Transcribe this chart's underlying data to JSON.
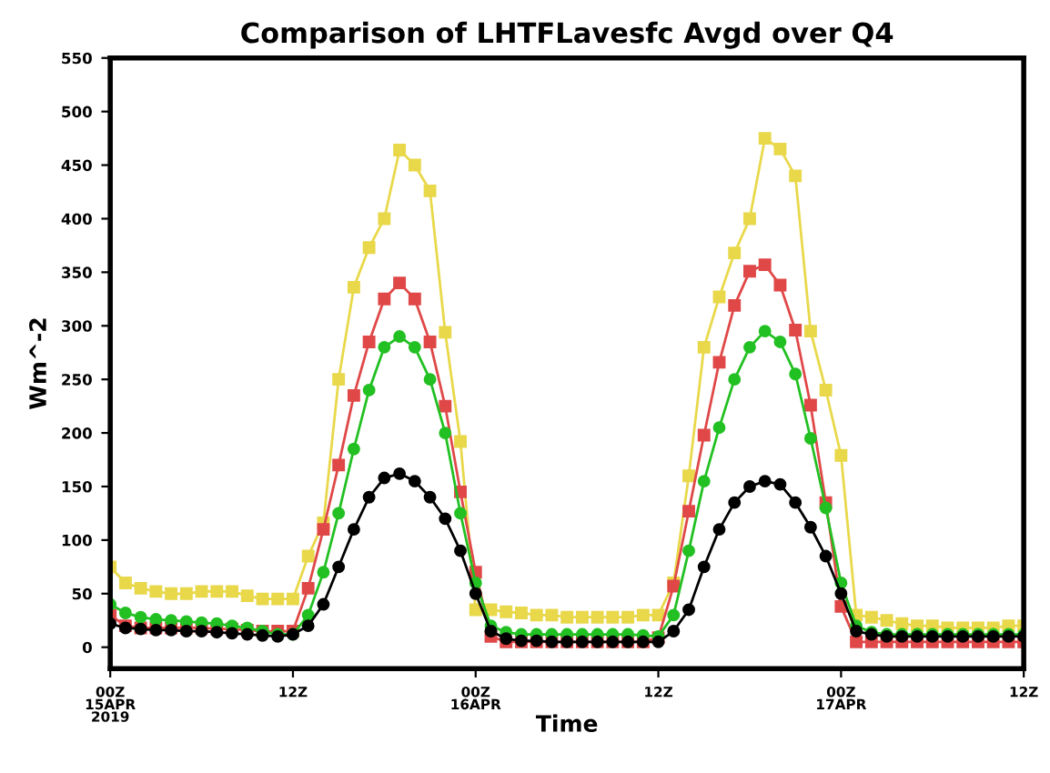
{
  "chart_data": {
    "type": "line",
    "title": "Comparison of LHTFLavesfc Avgd over Q4",
    "xlabel": "Time",
    "ylabel": "Wm^-2",
    "categories": [
      "00Z\n15APR\n2019",
      null,
      null,
      null,
      null,
      null,
      null,
      null,
      null,
      null,
      null,
      null,
      "12Z",
      null,
      null,
      null,
      null,
      null,
      null,
      null,
      null,
      null,
      null,
      null,
      "00Z\n16APR",
      null,
      null,
      null,
      null,
      null,
      null,
      null,
      null,
      null,
      null,
      null,
      "12Z",
      null,
      null,
      null,
      null,
      null,
      null,
      null,
      null,
      null,
      null,
      null,
      "00Z\n17APR",
      null,
      null,
      null,
      null,
      null,
      null,
      null,
      null,
      null,
      null,
      null,
      "12Z"
    ],
    "ylim": [
      -20,
      550
    ],
    "yticks": [
      0,
      50,
      100,
      150,
      200,
      250,
      300,
      350,
      400,
      450,
      500,
      550
    ],
    "grid": false,
    "series": [
      {
        "color": "#e8d84a",
        "marker": "square",
        "values": [
          75,
          60,
          55,
          52,
          50,
          50,
          52,
          52,
          52,
          48,
          45,
          45,
          45,
          85,
          116,
          250,
          336,
          373,
          400,
          464,
          450,
          426,
          294,
          192,
          35,
          35,
          33,
          32,
          30,
          30,
          28,
          28,
          28,
          28,
          28,
          30,
          30,
          60,
          160,
          280,
          327,
          368,
          400,
          475,
          465,
          440,
          295,
          240,
          179,
          30,
          28,
          25,
          22,
          20,
          20,
          18,
          18,
          18,
          18,
          20,
          20
        ]
      },
      {
        "color": "#e04848",
        "marker": "square",
        "values": [
          30,
          20,
          18,
          18,
          18,
          18,
          18,
          17,
          17,
          16,
          15,
          15,
          15,
          55,
          110,
          170,
          235,
          285,
          325,
          340,
          325,
          285,
          225,
          145,
          70,
          10,
          5,
          5,
          5,
          5,
          5,
          5,
          5,
          5,
          5,
          5,
          9,
          57,
          127,
          198,
          266,
          319,
          351,
          357,
          338,
          296,
          226,
          135,
          38,
          5,
          5,
          5,
          5,
          5,
          5,
          5,
          5,
          5,
          5,
          5,
          5
        ]
      },
      {
        "color": "#22c022",
        "marker": "circle",
        "values": [
          40,
          32,
          28,
          26,
          25,
          24,
          23,
          22,
          20,
          18,
          15,
          12,
          12,
          30,
          70,
          125,
          185,
          240,
          280,
          290,
          280,
          250,
          200,
          125,
          60,
          20,
          14,
          12,
          12,
          12,
          12,
          12,
          12,
          12,
          12,
          11,
          10,
          30,
          90,
          155,
          205,
          250,
          280,
          295,
          285,
          255,
          195,
          130,
          60,
          20,
          14,
          12,
          12,
          12,
          12,
          12,
          12,
          12,
          12,
          12,
          12
        ]
      },
      {
        "color": "#000000",
        "marker": "circle",
        "values": [
          22,
          18,
          17,
          16,
          16,
          15,
          15,
          14,
          13,
          12,
          11,
          10,
          12,
          20,
          40,
          75,
          110,
          140,
          158,
          162,
          155,
          140,
          120,
          90,
          50,
          15,
          8,
          6,
          6,
          5,
          5,
          5,
          5,
          5,
          5,
          5,
          5,
          15,
          35,
          75,
          110,
          135,
          150,
          155,
          152,
          135,
          112,
          85,
          50,
          15,
          12,
          10,
          10,
          10,
          10,
          10,
          10,
          10,
          10,
          10,
          10
        ]
      }
    ]
  }
}
